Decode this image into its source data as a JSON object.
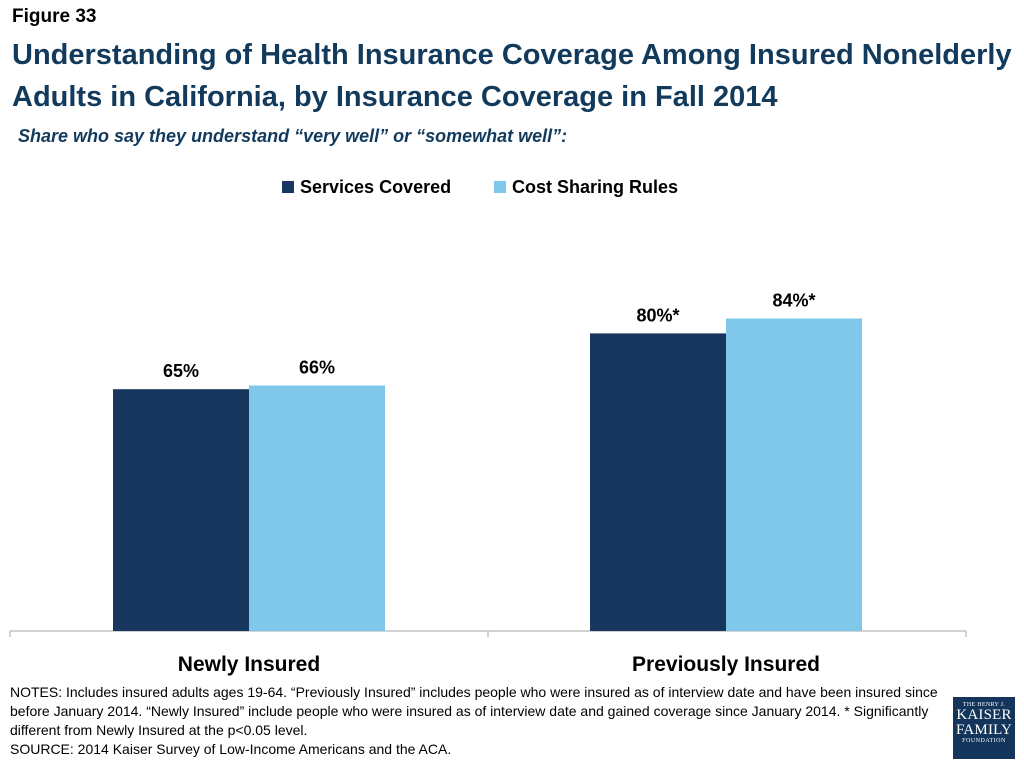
{
  "figure_label": "Figure 33",
  "title": "Understanding of Health Insurance Coverage Among Insured Nonelderly Adults in California, by Insurance Coverage in Fall 2014",
  "subtitle": "Share who say they understand “very well” or “somewhat well”:",
  "chart_data": {
    "type": "bar",
    "categories": [
      "Newly Insured",
      "Previously Insured"
    ],
    "series": [
      {
        "name": "Services Covered",
        "values": [
          65,
          80
        ],
        "labels": [
          "65%",
          "80%*"
        ],
        "color": "#17375e"
      },
      {
        "name": "Cost Sharing Rules",
        "values": [
          66,
          84
        ],
        "labels": [
          "66%",
          "84%*"
        ],
        "color": "#7fc8ec"
      }
    ],
    "ylim": [
      0,
      100
    ],
    "grid": false,
    "legend": "top-center",
    "xlabel": "",
    "ylabel": ""
  },
  "notes": {
    "line1": "NOTES: Includes insured adults ages 19-64. “Previously Insured” includes people who were insured as of interview date and have been insured since before January 2014. “Newly Insured” include people who were insured as of interview date and gained coverage since January 2014. * Significantly different from Newly Insured at the p<0.05 level.",
    "source": "SOURCE: 2014 Kaiser Survey of Low-Income Americans and the ACA."
  },
  "logo": {
    "line1": "THE HENRY J.",
    "line2": "KAISER",
    "line3": "FAMILY",
    "line4": "FOUNDATION"
  }
}
